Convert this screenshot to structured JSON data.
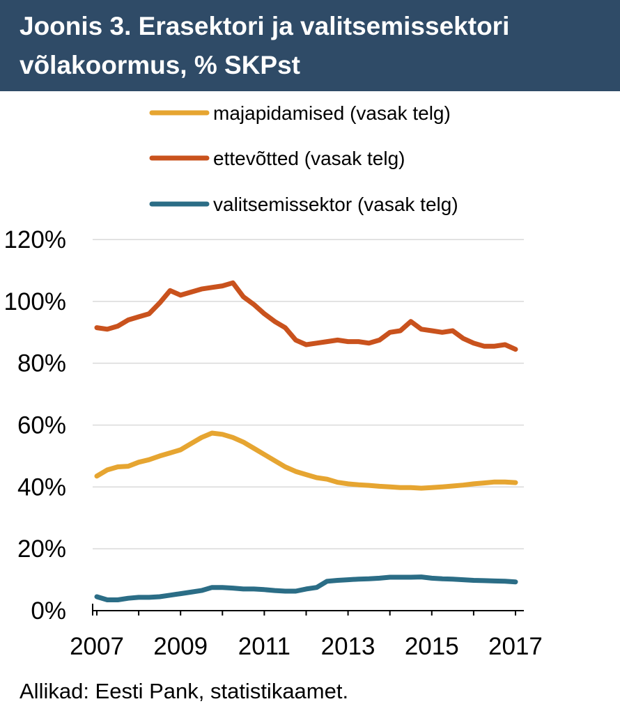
{
  "header": {
    "title_line1": "Joonis 3. Erasektori ja valitsemissektori",
    "title_line2": "võlakoormus, % SKPst"
  },
  "source": "Allikad: Eesti Pank, statistikaamet.",
  "colors": {
    "header_bg": "#2f4b67",
    "majapidamised": "#e6a531",
    "ettevotted": "#c9521d",
    "valitsemissektor": "#2b6d86",
    "grid": "#d9d9d9"
  },
  "chart_data": {
    "type": "line",
    "title": "Joonis 3. Erasektori ja valitsemissektori võlakoormus, % SKPst",
    "xlim": [
      2006.9,
      2017.2
    ],
    "x_ticks": [
      2007,
      2009,
      2011,
      2013,
      2015,
      2017
    ],
    "ylim": [
      0,
      120
    ],
    "y_ticks": [
      0,
      20,
      40,
      60,
      80,
      100,
      120
    ],
    "y_tick_labels": [
      "0%",
      "20%",
      "40%",
      "60%",
      "80%",
      "100%",
      "120%"
    ],
    "grid": true,
    "legend_position": "top",
    "x": [
      2007.0,
      2007.25,
      2007.5,
      2007.75,
      2008.0,
      2008.25,
      2008.5,
      2008.75,
      2009.0,
      2009.25,
      2009.5,
      2009.75,
      2010.0,
      2010.25,
      2010.5,
      2010.75,
      2011.0,
      2011.25,
      2011.5,
      2011.75,
      2012.0,
      2012.25,
      2012.5,
      2012.75,
      2013.0,
      2013.25,
      2013.5,
      2013.75,
      2014.0,
      2014.25,
      2014.5,
      2014.75,
      2015.0,
      2015.25,
      2015.5,
      2015.75,
      2016.0,
      2016.25,
      2016.5,
      2016.75,
      2017.0
    ],
    "series": [
      {
        "name": "majapidamised (vasak telg)",
        "color": "#e6a531",
        "values": [
          43.5,
          45.5,
          46.5,
          46.7,
          48.0,
          48.8,
          50.0,
          51.0,
          52.0,
          54.0,
          56.0,
          57.4,
          57.0,
          56.0,
          54.5,
          52.5,
          50.5,
          48.5,
          46.5,
          45.0,
          44.0,
          43.0,
          42.5,
          41.5,
          41.0,
          40.7,
          40.5,
          40.2,
          40.0,
          39.8,
          39.8,
          39.6,
          39.8,
          40.0,
          40.3,
          40.6,
          41.0,
          41.3,
          41.6,
          41.6,
          41.4
        ]
      },
      {
        "name": "ettevõtted (vasak telg)",
        "color": "#c9521d",
        "values": [
          91.5,
          91.0,
          92.0,
          94.0,
          95.0,
          96.0,
          99.5,
          103.5,
          102.0,
          103.0,
          104.0,
          104.5,
          105.0,
          106.0,
          101.5,
          99.0,
          96.0,
          93.5,
          91.5,
          87.5,
          86.0,
          86.5,
          87.0,
          87.5,
          87.0,
          87.0,
          86.5,
          87.5,
          90.0,
          90.5,
          93.5,
          91.0,
          90.5,
          90.0,
          90.5,
          88.0,
          86.5,
          85.5,
          85.5,
          86.0,
          84.5
        ]
      },
      {
        "name": "valitsemissektor (vasak telg)",
        "color": "#2b6d86",
        "values": [
          4.5,
          3.5,
          3.5,
          4.0,
          4.3,
          4.3,
          4.5,
          5.0,
          5.5,
          6.0,
          6.5,
          7.5,
          7.5,
          7.3,
          7.0,
          7.0,
          6.8,
          6.5,
          6.3,
          6.3,
          7.0,
          7.5,
          9.5,
          9.8,
          10.0,
          10.2,
          10.3,
          10.5,
          10.8,
          10.8,
          10.8,
          10.9,
          10.5,
          10.3,
          10.2,
          10.0,
          9.8,
          9.7,
          9.6,
          9.5,
          9.3
        ]
      }
    ]
  }
}
